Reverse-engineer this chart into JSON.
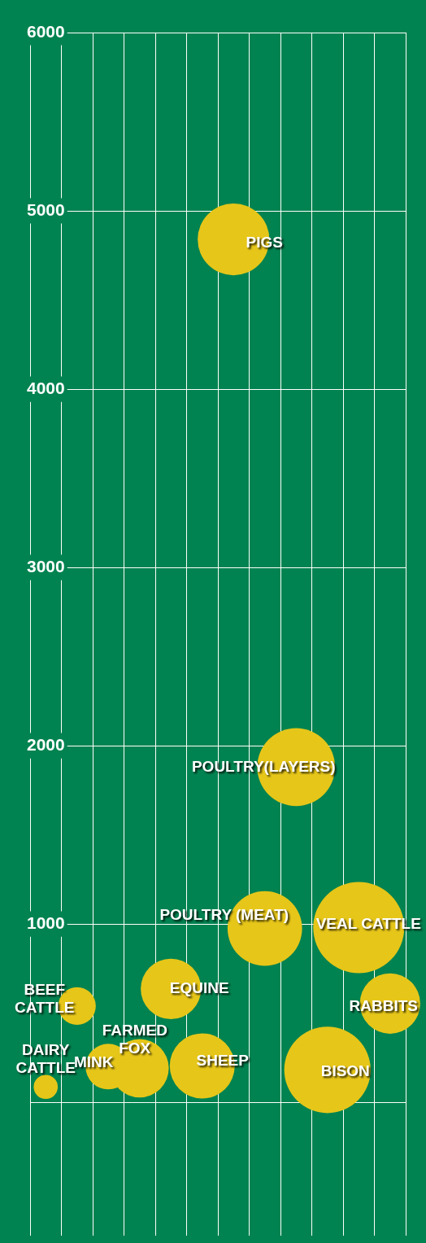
{
  "chart_data": {
    "type": "bubble",
    "categories": [
      null,
      null,
      null,
      null,
      null,
      null,
      null,
      null,
      null,
      null,
      null,
      null
    ],
    "ylim": [
      -750,
      6000
    ],
    "yticks": [
      {
        "value": 0,
        "label": null
      },
      1000,
      2000,
      3000,
      4000,
      5000,
      6000
    ],
    "grid": true,
    "legend": false,
    "tick_labels": "y",
    "series": [
      {
        "name": "DAIRY CATTLE",
        "color": "#e6c619",
        "values": [
          86,
          null,
          null,
          null,
          null,
          null,
          null,
          null,
          null,
          null,
          null,
          null
        ],
        "sizes": [
          0.07,
          null,
          null,
          null,
          null,
          null,
          null,
          null,
          null,
          null,
          null,
          null
        ]
      },
      {
        "name": "BEEF CATTLE",
        "color": "#e6c619",
        "values": [
          null,
          540,
          null,
          null,
          null,
          null,
          null,
          null,
          null,
          null,
          null,
          null
        ],
        "sizes": [
          null,
          0.17,
          null,
          null,
          null,
          null,
          null,
          null,
          null,
          null,
          null,
          null
        ]
      },
      {
        "name": "MINK",
        "color": "#e6c619",
        "values": [
          null,
          null,
          200,
          null,
          null,
          null,
          null,
          null,
          null,
          null,
          null,
          null
        ],
        "sizes": [
          null,
          null,
          0.25,
          null,
          null,
          null,
          null,
          null,
          null,
          null,
          null,
          null
        ]
      },
      {
        "name": "FARMED FOX",
        "color": "#e6c619",
        "values": [
          null,
          null,
          null,
          191,
          null,
          null,
          null,
          null,
          null,
          null,
          null,
          null
        ],
        "sizes": [
          null,
          null,
          null,
          0.41,
          null,
          null,
          null,
          null,
          null,
          null,
          null,
          null
        ]
      },
      {
        "name": "EQUINE",
        "color": "#e6c619",
        "values": [
          null,
          null,
          null,
          null,
          636,
          null,
          null,
          null,
          null,
          null,
          null,
          null
        ],
        "sizes": [
          null,
          null,
          null,
          null,
          0.44,
          null,
          null,
          null,
          null,
          null,
          null,
          null
        ]
      },
      {
        "name": "SHEEP",
        "color": "#e6c619",
        "values": [
          null,
          null,
          null,
          null,
          null,
          204,
          null,
          null,
          null,
          null,
          null,
          null
        ],
        "sizes": [
          null,
          null,
          null,
          null,
          null,
          0.51,
          null,
          null,
          null,
          null,
          null,
          null
        ]
      },
      {
        "name": "PIGS",
        "color": "#e6c619",
        "values": [
          null,
          null,
          null,
          null,
          null,
          null,
          4840,
          null,
          null,
          null,
          null,
          null
        ],
        "sizes": [
          null,
          null,
          null,
          null,
          null,
          null,
          0.62,
          null,
          null,
          null,
          null,
          null
        ]
      },
      {
        "name": "POULTRY (MEAT)",
        "color": "#e6c619",
        "values": [
          null,
          null,
          null,
          null,
          null,
          null,
          null,
          975,
          null,
          null,
          null,
          null
        ],
        "sizes": [
          null,
          null,
          null,
          null,
          null,
          null,
          null,
          0.67,
          null,
          null,
          null,
          null
        ]
      },
      {
        "name": "POULTRY(LAYERS)",
        "color": "#e6c619",
        "values": [
          null,
          null,
          null,
          null,
          null,
          null,
          null,
          null,
          1880,
          null,
          null,
          null
        ],
        "sizes": [
          null,
          null,
          null,
          null,
          null,
          null,
          null,
          null,
          0.73,
          null,
          null,
          null
        ]
      },
      {
        "name": "BISON",
        "color": "#e6c619",
        "values": [
          null,
          null,
          null,
          null,
          null,
          null,
          null,
          null,
          null,
          182,
          null,
          null
        ],
        "sizes": [
          null,
          null,
          null,
          null,
          null,
          null,
          null,
          null,
          null,
          0.9,
          null,
          null
        ]
      },
      {
        "name": "VEAL CATTLE",
        "color": "#e6c619",
        "values": [
          null,
          null,
          null,
          null,
          null,
          null,
          null,
          null,
          null,
          null,
          980,
          null
        ],
        "sizes": [
          null,
          null,
          null,
          null,
          null,
          null,
          null,
          null,
          null,
          null,
          1,
          null
        ]
      },
      {
        "name": "RABBITS",
        "color": "#e6c619",
        "values": [
          null,
          null,
          null,
          null,
          null,
          null,
          null,
          null,
          null,
          null,
          null,
          554
        ],
        "sizes": [
          null,
          null,
          null,
          null,
          null,
          null,
          null,
          null,
          null,
          null,
          null,
          0.44
        ]
      }
    ]
  }
}
